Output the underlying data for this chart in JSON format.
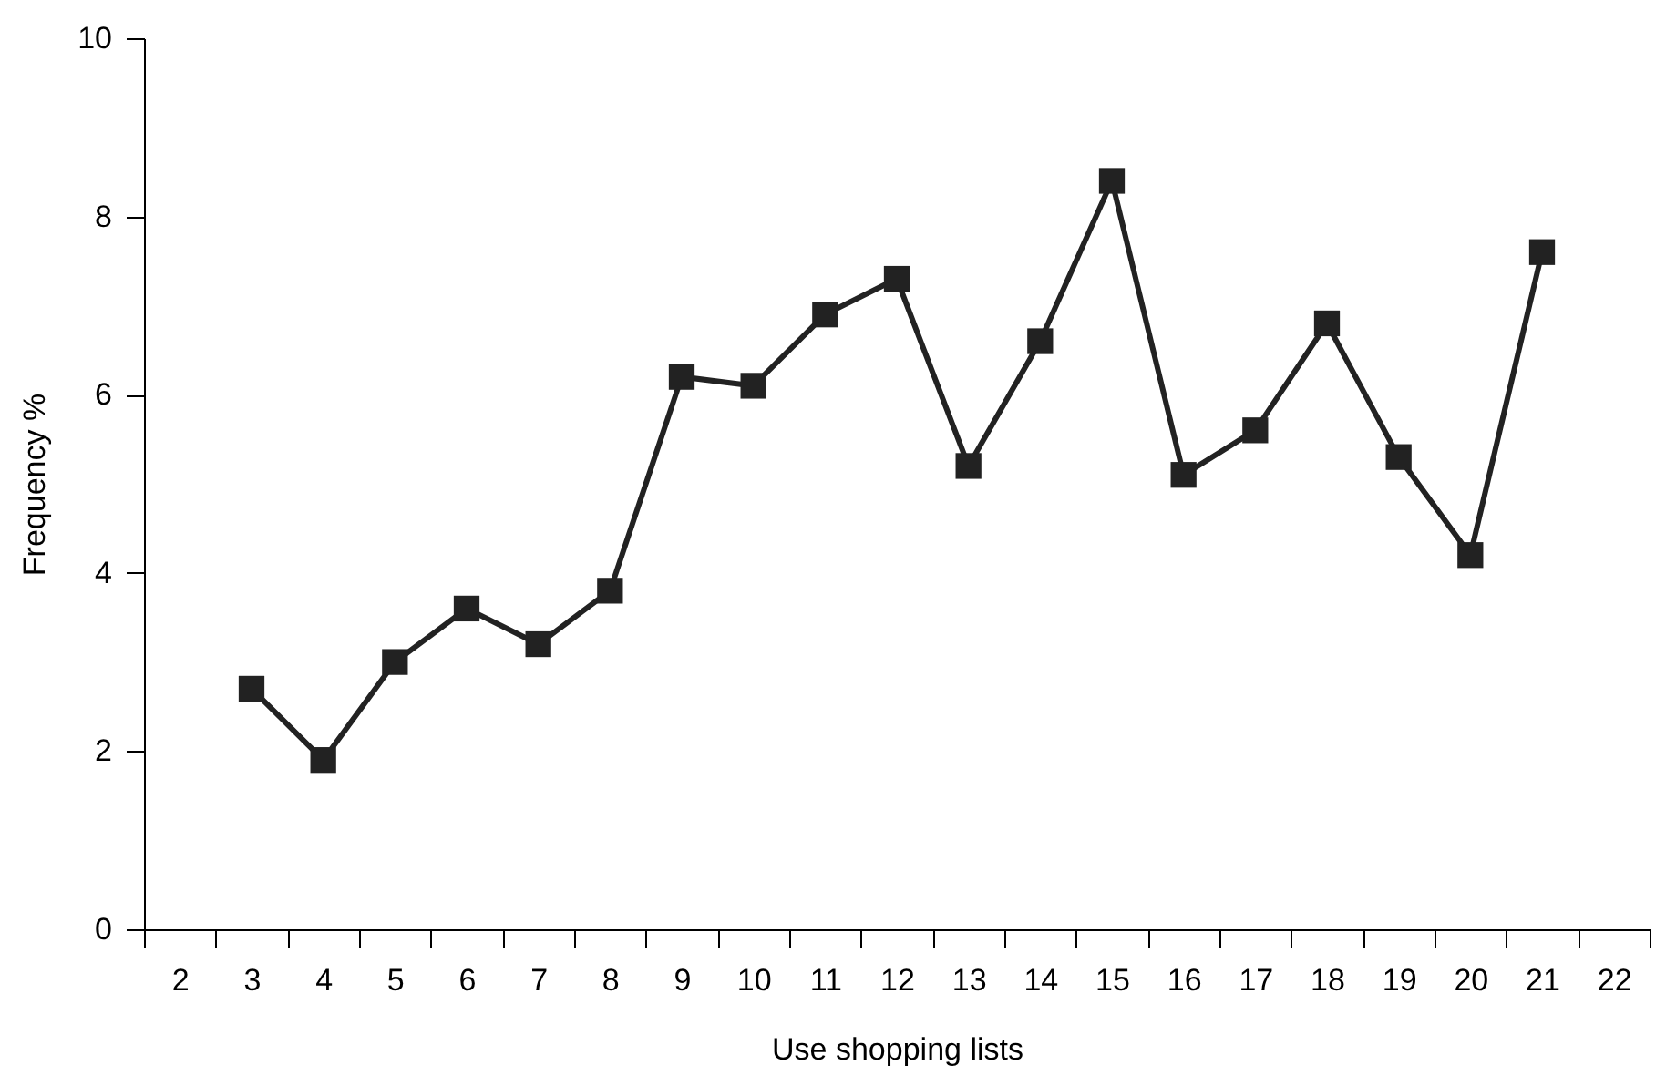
{
  "chart_data": {
    "type": "line",
    "xlabel": "Use shopping lists",
    "ylabel": "Frequency %",
    "categories": [
      "2",
      "3",
      "4",
      "5",
      "6",
      "7",
      "8",
      "9",
      "10",
      "11",
      "12",
      "13",
      "14",
      "15",
      "16",
      "17",
      "18",
      "19",
      "20",
      "21",
      "22"
    ],
    "series": [
      {
        "color": "#222222",
        "values": [
          null,
          2.7,
          1.9,
          3.0,
          3.6,
          3.2,
          3.8,
          6.2,
          6.1,
          6.9,
          7.3,
          5.2,
          6.6,
          8.4,
          5.1,
          5.6,
          6.8,
          5.3,
          4.2,
          7.6,
          null
        ]
      }
    ],
    "ylim": [
      0,
      10
    ],
    "yticks": [
      0,
      2,
      4,
      6,
      8,
      10
    ],
    "grid": false,
    "marker": "square",
    "line_style": "solid"
  }
}
